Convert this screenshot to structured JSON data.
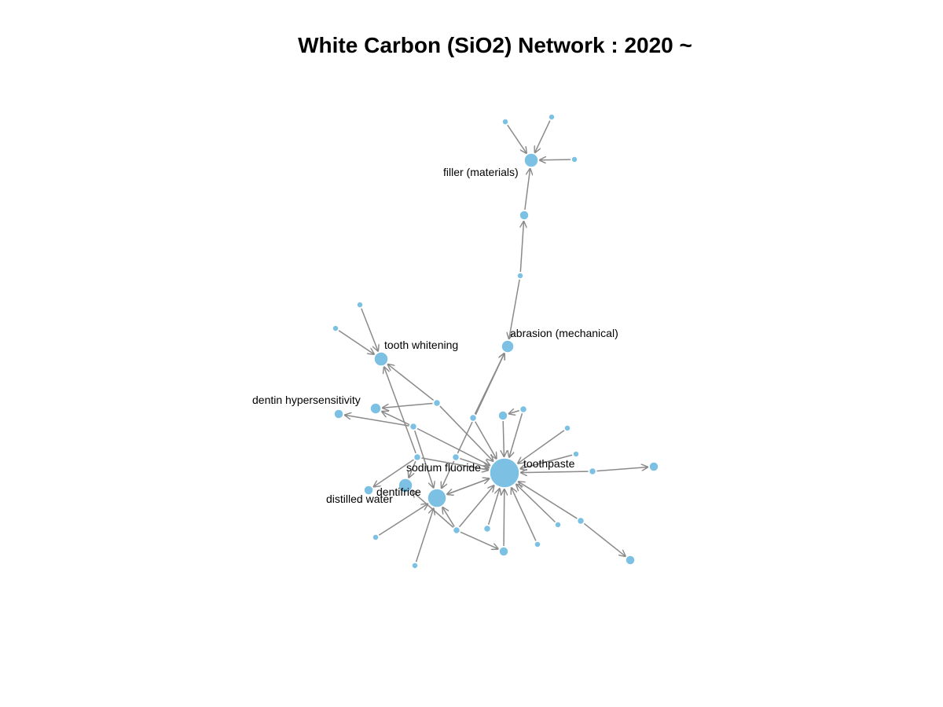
{
  "title": "White Carbon (SiO2) Network : 2020 ~",
  "style": {
    "node_color": "#7cc1e3",
    "edge_color": "#8a8a8a",
    "background": "#ffffff"
  },
  "nodes": [
    {
      "id": "toothpaste",
      "label": "toothpaste"
    },
    {
      "id": "dentifrice",
      "label": "dentifrice"
    },
    {
      "id": "sodium_fluoride",
      "label": "sodium fluoride"
    },
    {
      "id": "distilled_water",
      "label": "distilled water"
    },
    {
      "id": "dentin_hypersensitivity",
      "label": "dentin hypersensitivity"
    },
    {
      "id": "tooth_whitening",
      "label": "tooth whitening"
    },
    {
      "id": "abrasion_mechanical",
      "label": "abrasion (mechanical)"
    },
    {
      "id": "filler_materials",
      "label": "filler (materials)"
    },
    {
      "id": "n_fill_a",
      "label": ""
    },
    {
      "id": "n_fill_b",
      "label": ""
    },
    {
      "id": "n_fill_c",
      "label": ""
    },
    {
      "id": "n_chain_1",
      "label": ""
    },
    {
      "id": "n_chain_2",
      "label": ""
    },
    {
      "id": "n_tw_a",
      "label": ""
    },
    {
      "id": "n_tw_b",
      "label": ""
    },
    {
      "id": "n_hub_a",
      "label": ""
    },
    {
      "id": "n_hub_b",
      "label": ""
    },
    {
      "id": "n_dh_left",
      "label": ""
    },
    {
      "id": "n_mid_a",
      "label": ""
    },
    {
      "id": "n_mid_b",
      "label": ""
    },
    {
      "id": "n_mid_c",
      "label": ""
    },
    {
      "id": "n_mid_d",
      "label": ""
    },
    {
      "id": "n_mid_e",
      "label": ""
    },
    {
      "id": "n_r1",
      "label": ""
    },
    {
      "id": "n_r2",
      "label": ""
    },
    {
      "id": "n_r3",
      "label": ""
    },
    {
      "id": "n_far_right",
      "label": ""
    },
    {
      "id": "n_b1",
      "label": ""
    },
    {
      "id": "n_b2",
      "label": ""
    },
    {
      "id": "n_b3",
      "label": ""
    },
    {
      "id": "n_b4",
      "label": ""
    },
    {
      "id": "n_b5",
      "label": ""
    },
    {
      "id": "n_bottom_right",
      "label": ""
    },
    {
      "id": "n_bl1",
      "label": ""
    },
    {
      "id": "n_bl2",
      "label": ""
    },
    {
      "id": "n_bm",
      "label": ""
    }
  ],
  "edges": [
    [
      "n_fill_a",
      "filler_materials"
    ],
    [
      "n_fill_b",
      "filler_materials"
    ],
    [
      "n_fill_c",
      "filler_materials"
    ],
    [
      "n_chain_1",
      "filler_materials"
    ],
    [
      "n_chain_2",
      "n_chain_1"
    ],
    [
      "n_chain_2",
      "abrasion_mechanical"
    ],
    [
      "n_tw_a",
      "tooth_whitening"
    ],
    [
      "n_tw_b",
      "tooth_whitening"
    ],
    [
      "n_hub_a",
      "tooth_whitening"
    ],
    [
      "n_hub_a",
      "dentin_hypersensitivity"
    ],
    [
      "n_hub_a",
      "toothpaste"
    ],
    [
      "n_hub_b",
      "dentin_hypersensitivity"
    ],
    [
      "n_hub_b",
      "n_dh_left"
    ],
    [
      "n_hub_b",
      "dentifrice"
    ],
    [
      "n_hub_b",
      "toothpaste"
    ],
    [
      "n_mid_a",
      "tooth_whitening"
    ],
    [
      "n_mid_a",
      "sodium_fluoride"
    ],
    [
      "n_mid_a",
      "distilled_water"
    ],
    [
      "n_mid_a",
      "toothpaste"
    ],
    [
      "n_mid_b",
      "abrasion_mechanical"
    ],
    [
      "n_mid_b",
      "dentifrice"
    ],
    [
      "n_mid_b",
      "toothpaste"
    ],
    [
      "n_mid_c",
      "abrasion_mechanical"
    ],
    [
      "n_mid_c",
      "toothpaste"
    ],
    [
      "n_mid_d",
      "toothpaste"
    ],
    [
      "n_mid_e",
      "n_mid_d"
    ],
    [
      "n_mid_e",
      "toothpaste"
    ],
    [
      "n_r1",
      "toothpaste"
    ],
    [
      "n_r2",
      "toothpaste"
    ],
    [
      "n_r3",
      "toothpaste"
    ],
    [
      "n_r3",
      "n_far_right"
    ],
    [
      "toothpaste",
      "dentifrice"
    ],
    [
      "dentifrice",
      "toothpaste"
    ],
    [
      "n_b1",
      "toothpaste"
    ],
    [
      "n_b2",
      "toothpaste"
    ],
    [
      "n_b3",
      "toothpaste"
    ],
    [
      "n_b3",
      "n_bottom_right"
    ],
    [
      "n_b4",
      "toothpaste"
    ],
    [
      "n_b5",
      "toothpaste"
    ],
    [
      "n_b5",
      "dentifrice"
    ],
    [
      "n_b5",
      "n_bm"
    ],
    [
      "n_b5",
      "sodium_fluoride"
    ],
    [
      "n_bm",
      "toothpaste"
    ],
    [
      "n_bl1",
      "dentifrice"
    ],
    [
      "n_bl2",
      "dentifrice"
    ]
  ]
}
